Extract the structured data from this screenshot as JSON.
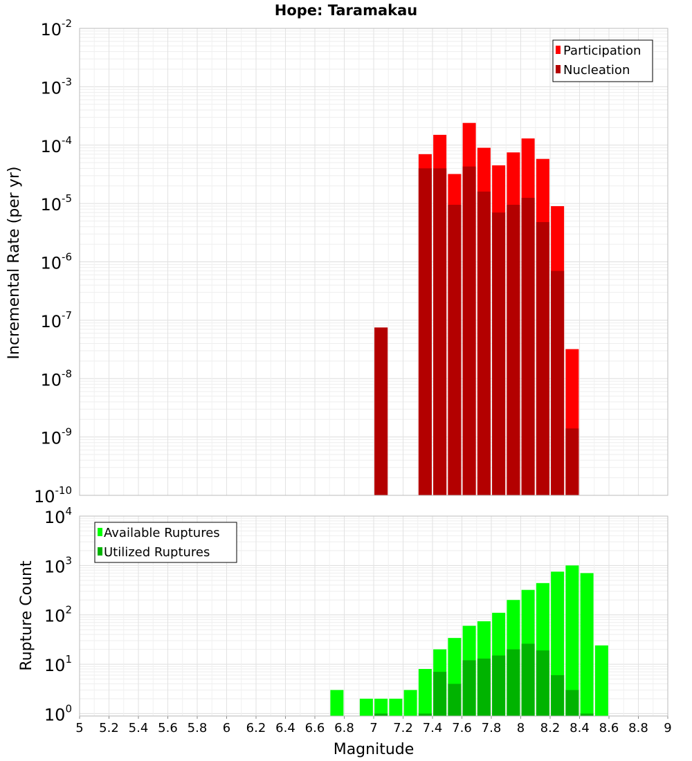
{
  "chart_data": [
    {
      "type": "bar",
      "title": "Hope: Taramakau",
      "ylabel": "Incremental Rate (per yr)",
      "xlabel": "",
      "xlim": [
        5,
        9
      ],
      "ylim_exp": [
        -10,
        -2
      ],
      "yscale": "log",
      "grid": true,
      "legend_position": "top-right",
      "y_ticks": [
        {
          "base": "10",
          "exp": "-10"
        },
        {
          "base": "10",
          "exp": "-9"
        },
        {
          "base": "10",
          "exp": "-8"
        },
        {
          "base": "10",
          "exp": "-7"
        },
        {
          "base": "10",
          "exp": "-6"
        },
        {
          "base": "10",
          "exp": "-5"
        },
        {
          "base": "10",
          "exp": "-4"
        },
        {
          "base": "10",
          "exp": "-3"
        },
        {
          "base": "10",
          "exp": "-2"
        }
      ],
      "series": [
        {
          "name": "Participation",
          "color": "#ff0000",
          "x": [
            7.05,
            7.35,
            7.45,
            7.55,
            7.65,
            7.75,
            7.85,
            7.95,
            8.05,
            8.15,
            8.25,
            8.35
          ],
          "values": [
            7.5e-08,
            7e-05,
            0.00015,
            3.2e-05,
            0.00024,
            9e-05,
            4.5e-05,
            7.5e-05,
            0.00013,
            5.8e-05,
            9e-06,
            3.2e-08
          ]
        },
        {
          "name": "Nucleation",
          "color": "#b30000",
          "x": [
            7.05,
            7.35,
            7.45,
            7.55,
            7.65,
            7.75,
            7.85,
            7.95,
            8.05,
            8.15,
            8.25,
            8.35
          ],
          "values": [
            7.5e-08,
            4e-05,
            4e-05,
            9.5e-06,
            4.3e-05,
            1.6e-05,
            7e-06,
            9.5e-06,
            1.25e-05,
            4.8e-06,
            7e-07,
            1.4e-09
          ]
        }
      ]
    },
    {
      "type": "bar",
      "title": "",
      "ylabel": "Rupture Count",
      "xlabel": "Magnitude",
      "xlim": [
        5,
        9
      ],
      "ylim_exp": [
        -0.05,
        4
      ],
      "yscale": "log",
      "grid": true,
      "legend_position": "top-left",
      "x_ticks": [
        "5",
        "5.2",
        "5.4",
        "5.6",
        "5.8",
        "6",
        "6.2",
        "6.4",
        "6.6",
        "6.8",
        "7",
        "7.2",
        "7.4",
        "7.6",
        "7.8",
        "8",
        "8.2",
        "8.4",
        "8.6",
        "8.8",
        "9"
      ],
      "y_ticks": [
        {
          "base": "10",
          "exp": "0"
        },
        {
          "base": "10",
          "exp": "1"
        },
        {
          "base": "10",
          "exp": "2"
        },
        {
          "base": "10",
          "exp": "3"
        },
        {
          "base": "10",
          "exp": "4"
        }
      ],
      "series": [
        {
          "name": "Available Ruptures",
          "color": "#00ff00",
          "x": [
            6.75,
            6.95,
            7.05,
            7.15,
            7.25,
            7.35,
            7.45,
            7.55,
            7.65,
            7.75,
            7.85,
            7.95,
            8.05,
            8.15,
            8.25,
            8.35,
            8.45,
            8.55
          ],
          "values": [
            3,
            2,
            2,
            2,
            3,
            8,
            20,
            34,
            60,
            74,
            110,
            200,
            320,
            440,
            750,
            1000,
            700,
            24
          ]
        },
        {
          "name": "Utilized Ruptures",
          "color": "#00b300",
          "x": [
            7.05,
            7.35,
            7.45,
            7.55,
            7.65,
            7.75,
            7.85,
            7.95,
            8.05,
            8.15,
            8.25,
            8.35,
            8.45
          ],
          "values": [
            1,
            1,
            7,
            4,
            12,
            13,
            15,
            20,
            26,
            19,
            6,
            3,
            1
          ]
        }
      ]
    }
  ]
}
